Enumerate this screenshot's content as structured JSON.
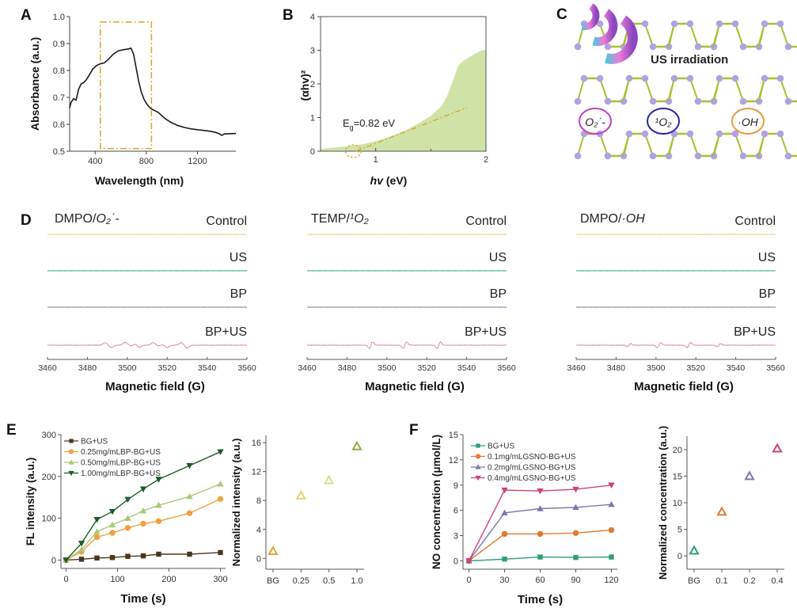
{
  "panels": {
    "A": "A",
    "B": "B",
    "C": "C",
    "D": "D",
    "E": "E",
    "F": "F"
  },
  "chart_data": [
    {
      "id": "A",
      "type": "line",
      "xlabel": "Wavelength (nm)",
      "ylabel": "Absorbance (a.u.)",
      "xlim": [
        200,
        1500
      ],
      "ylim": [
        0.5,
        1.0
      ],
      "xticks": [
        400,
        800,
        1200
      ],
      "yticks": [
        0.5,
        0.6,
        0.7,
        0.8,
        0.9,
        1.0
      ],
      "ytick_labels": [
        "0.5",
        "0.6",
        "0.7",
        "0.8",
        "0.9",
        "1.0"
      ],
      "highlight_box_x": [
        440,
        840
      ],
      "highlight_box_y": [
        0.51,
        0.98
      ],
      "color": "#1a1a1a",
      "box_color": "#d4a62a",
      "x": [
        200,
        210,
        230,
        250,
        270,
        290,
        310,
        330,
        350,
        380,
        410,
        440,
        470,
        500,
        540,
        580,
        620,
        660,
        680,
        700,
        720,
        740,
        760,
        780,
        800,
        830,
        860,
        890,
        950,
        1000,
        1050,
        1100,
        1150,
        1200,
        1250,
        1300,
        1340,
        1370,
        1390,
        1410,
        1450,
        1500
      ],
      "y": [
        0.66,
        0.68,
        0.695,
        0.69,
        0.73,
        0.75,
        0.755,
        0.765,
        0.78,
        0.805,
        0.818,
        0.825,
        0.828,
        0.84,
        0.86,
        0.873,
        0.877,
        0.88,
        0.883,
        0.86,
        0.81,
        0.76,
        0.72,
        0.695,
        0.678,
        0.66,
        0.652,
        0.645,
        0.62,
        0.605,
        0.595,
        0.588,
        0.583,
        0.58,
        0.577,
        0.574,
        0.57,
        0.565,
        0.559,
        0.564,
        0.565,
        0.566
      ]
    },
    {
      "id": "B",
      "type": "area",
      "xlabel": "hv (eV)",
      "ylabel": "(αhv)²",
      "xlim": [
        0.5,
        2.0
      ],
      "ylim": [
        0,
        4
      ],
      "xticks": [
        1,
        2
      ],
      "yticks": [
        0,
        1,
        2,
        3,
        4
      ],
      "annotation": "Eg=0.82 eV",
      "fill_color": "#cfe3a6",
      "line_color": "#d4a62a",
      "x": [
        0.5,
        0.6,
        0.7,
        0.8,
        0.9,
        1.0,
        1.1,
        1.2,
        1.3,
        1.4,
        1.5,
        1.6,
        1.65,
        1.7,
        1.75,
        1.8,
        1.85,
        1.9,
        1.95,
        2.0
      ],
      "y": [
        0.07,
        0.1,
        0.13,
        0.17,
        0.22,
        0.3,
        0.4,
        0.52,
        0.67,
        0.85,
        1.05,
        1.35,
        1.65,
        2.1,
        2.55,
        2.7,
        2.8,
        2.9,
        2.98,
        3.02
      ],
      "tangent_x": [
        0.82,
        1.83
      ],
      "tangent_y": [
        0,
        1.3
      ],
      "eg_marker_x": 0.82
    },
    {
      "id": "D",
      "type": "line",
      "xlabel": "Magnetic field (G)",
      "xlim": [
        3460,
        3560
      ],
      "xticks": [
        3460,
        3480,
        3500,
        3520,
        3540,
        3560
      ],
      "traces": [
        "Control",
        "US",
        "BP",
        "BP+US"
      ],
      "trace_colors": [
        "#e6c98a",
        "#3fa98a",
        "#7d8aa8",
        "#d98ab3"
      ],
      "panels": [
        {
          "title": "DMPO/O₂˙⁻",
          "title_main": "DMPO/",
          "title_species": "O₂˙-",
          "bpus_peaks": [
            {
              "x": 3489,
              "a": 1.0
            },
            {
              "x": 3492,
              "a": -1.0
            },
            {
              "x": 3499,
              "a": 1.1
            },
            {
              "x": 3502,
              "a": -0.3
            },
            {
              "x": 3504,
              "a": 0.5
            },
            {
              "x": 3506,
              "a": -0.9
            },
            {
              "x": 3513,
              "a": 1.0
            },
            {
              "x": 3516,
              "a": -0.5
            },
            {
              "x": 3517,
              "a": 0.4
            },
            {
              "x": 3520,
              "a": -0.9
            },
            {
              "x": 3527,
              "a": 1.0
            },
            {
              "x": 3530,
              "a": -1.1
            }
          ],
          "shape": "zigzag"
        },
        {
          "title": "TEMP/¹O₂",
          "title_main": "TEMP/",
          "title_species": "¹O₂",
          "bpus_peaks": [
            {
              "x": 3492,
              "a": 3.2
            },
            {
              "x": 3509,
              "a": 3.2
            },
            {
              "x": 3526,
              "a": 3.2
            }
          ],
          "shape": "derivative"
        },
        {
          "title": "DMPO/·OH",
          "title_main": "DMPO/",
          "title_species": "·OH",
          "bpus_peaks": [
            {
              "x": 3486.5,
              "a": 1.4
            },
            {
              "x": 3501.5,
              "a": 2.6
            },
            {
              "x": 3516.5,
              "a": 2.6
            },
            {
              "x": 3531.5,
              "a": 1.4
            }
          ],
          "shape": "derivative"
        }
      ]
    },
    {
      "id": "E-left",
      "type": "line",
      "xlabel": "Time (s)",
      "ylabel": "FL intensity (a.u.)",
      "xlim": [
        -10,
        310
      ],
      "ylim": [
        -20,
        300
      ],
      "xticks": [
        0,
        100,
        200,
        300
      ],
      "yticks": [
        0,
        100,
        200,
        300
      ],
      "x": [
        0,
        30,
        60,
        90,
        120,
        150,
        180,
        240,
        300
      ],
      "legend_position": "top-left",
      "series": [
        {
          "name": "BG+US",
          "color": "#4a3520",
          "marker": "square",
          "values": [
            0,
            2,
            5,
            6,
            9,
            10,
            14,
            14,
            18
          ]
        },
        {
          "name": "0.25mg/mLBP-BG+US",
          "color": "#f0a040",
          "marker": "circle",
          "values": [
            0,
            20,
            55,
            65,
            77,
            87,
            93,
            112,
            146
          ]
        },
        {
          "name": "0.50mg/mLBP-BG+US",
          "color": "#a8c878",
          "marker": "triangle-up",
          "values": [
            0,
            25,
            68,
            84,
            100,
            118,
            131,
            152,
            182
          ]
        },
        {
          "name": "1.00mg/mLBP-BG+US",
          "color": "#1f5a2a",
          "marker": "triangle-down",
          "values": [
            0,
            40,
            97,
            116,
            145,
            170,
            193,
            226,
            259
          ]
        }
      ]
    },
    {
      "id": "E-right",
      "type": "scatter",
      "xlabel": "",
      "ylabel": "Normalized intensity (a.u.)",
      "ylim": [
        -1.5,
        17
      ],
      "yticks": [
        0,
        4,
        8,
        12,
        16
      ],
      "categories": [
        "BG",
        "0.25",
        "0.5",
        "1.0"
      ],
      "values": [
        1.0,
        8.7,
        10.8,
        15.5
      ],
      "colors": [
        "#e0a030",
        "#e8d070",
        "#d8e088",
        "#8cad4a"
      ],
      "marker": "triangle-up-open"
    },
    {
      "id": "F-left",
      "type": "line",
      "xlabel": "Time (s)",
      "ylabel": "NO concentration (μmol/L)",
      "xlim": [
        -5,
        125
      ],
      "ylim": [
        -1,
        15
      ],
      "xticks": [
        0,
        30,
        60,
        90,
        120
      ],
      "yticks": [
        0,
        3,
        6,
        9,
        12,
        15
      ],
      "x": [
        0,
        30,
        60,
        90,
        120
      ],
      "legend_position": "top-left",
      "series": [
        {
          "name": "BG+US",
          "color": "#2e9c7a",
          "marker": "square",
          "values": [
            0,
            0.2,
            0.45,
            0.4,
            0.45
          ]
        },
        {
          "name": "0.1mg/mLGSNO-BG+US",
          "color": "#e07a30",
          "marker": "circle",
          "values": [
            0,
            3.2,
            3.2,
            3.3,
            3.65
          ]
        },
        {
          "name": "0.2mg/mLGSNO-BG+US",
          "color": "#7a78b0",
          "marker": "triangle-up",
          "values": [
            0,
            5.7,
            6.2,
            6.35,
            6.7
          ]
        },
        {
          "name": "0.4mg/mLGSNO-BG+US",
          "color": "#d0407a",
          "marker": "triangle-down",
          "values": [
            0,
            8.4,
            8.3,
            8.5,
            9.0
          ]
        }
      ]
    },
    {
      "id": "F-right",
      "type": "scatter",
      "xlabel": "",
      "ylabel": "Normalized concentration (a.u.)",
      "ylim": [
        -2.5,
        22.5
      ],
      "yticks": [
        0,
        5,
        10,
        15,
        20
      ],
      "categories": [
        "BG",
        "0.1",
        "0.2",
        "0.4"
      ],
      "values": [
        1.0,
        8.3,
        15.0,
        20.2
      ],
      "colors": [
        "#2e9c7a",
        "#e07a30",
        "#7a78b0",
        "#d0407a"
      ],
      "marker": "triangle-up-open"
    }
  ],
  "diagram_c": {
    "label": "US irradiation",
    "species": [
      {
        "name": "O₂˙-",
        "color": "#c040c0"
      },
      {
        "name": "¹O₂",
        "color": "#2a2a9a"
      },
      {
        "name": "·OH",
        "color": "#e89a40"
      }
    ],
    "atom_color": "#b3a0e0",
    "bond_color": "#a8c030"
  }
}
